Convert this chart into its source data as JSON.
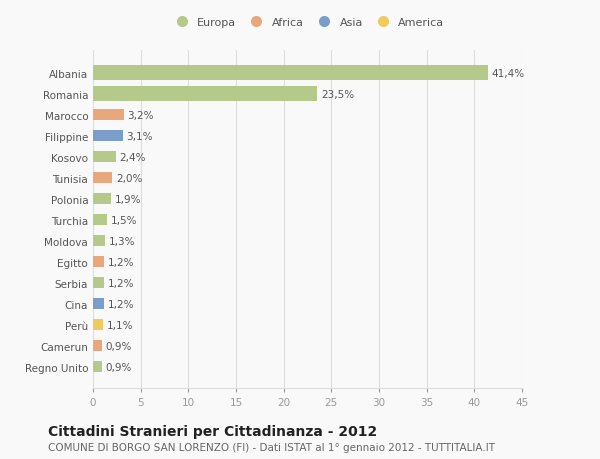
{
  "countries": [
    "Albania",
    "Romania",
    "Marocco",
    "Filippine",
    "Kosovo",
    "Tunisia",
    "Polonia",
    "Turchia",
    "Moldova",
    "Egitto",
    "Serbia",
    "Cina",
    "Perù",
    "Camerun",
    "Regno Unito"
  ],
  "values": [
    41.4,
    23.5,
    3.2,
    3.1,
    2.4,
    2.0,
    1.9,
    1.5,
    1.3,
    1.2,
    1.2,
    1.2,
    1.1,
    0.9,
    0.9
  ],
  "labels": [
    "41,4%",
    "23,5%",
    "3,2%",
    "3,1%",
    "2,4%",
    "2,0%",
    "1,9%",
    "1,5%",
    "1,3%",
    "1,2%",
    "1,2%",
    "1,2%",
    "1,1%",
    "0,9%",
    "0,9%"
  ],
  "colors": [
    "#b5c98a",
    "#b5c98a",
    "#e8a87c",
    "#7a9ec9",
    "#b5c98a",
    "#e8a87c",
    "#b5c98a",
    "#b5c98a",
    "#b5c98a",
    "#e8a87c",
    "#b5c98a",
    "#7a9ec9",
    "#f0ca5e",
    "#e8a87c",
    "#b5c98a"
  ],
  "legend_labels": [
    "Europa",
    "Africa",
    "Asia",
    "America"
  ],
  "legend_colors": [
    "#b5c98a",
    "#e8a87c",
    "#7a9ec9",
    "#f0ca5e"
  ],
  "title": "Cittadini Stranieri per Cittadinanza - 2012",
  "subtitle": "COMUNE DI BORGO SAN LORENZO (FI) - Dati ISTAT al 1° gennaio 2012 - TUTTITALIA.IT",
  "xlim": [
    0,
    45
  ],
  "xticks": [
    0,
    5,
    10,
    15,
    20,
    25,
    30,
    35,
    40,
    45
  ],
  "bg_color": "#f9f9f9",
  "grid_color": "#dddddd",
  "title_fontsize": 10,
  "subtitle_fontsize": 7.5,
  "label_fontsize": 7.5,
  "tick_fontsize": 7.5
}
